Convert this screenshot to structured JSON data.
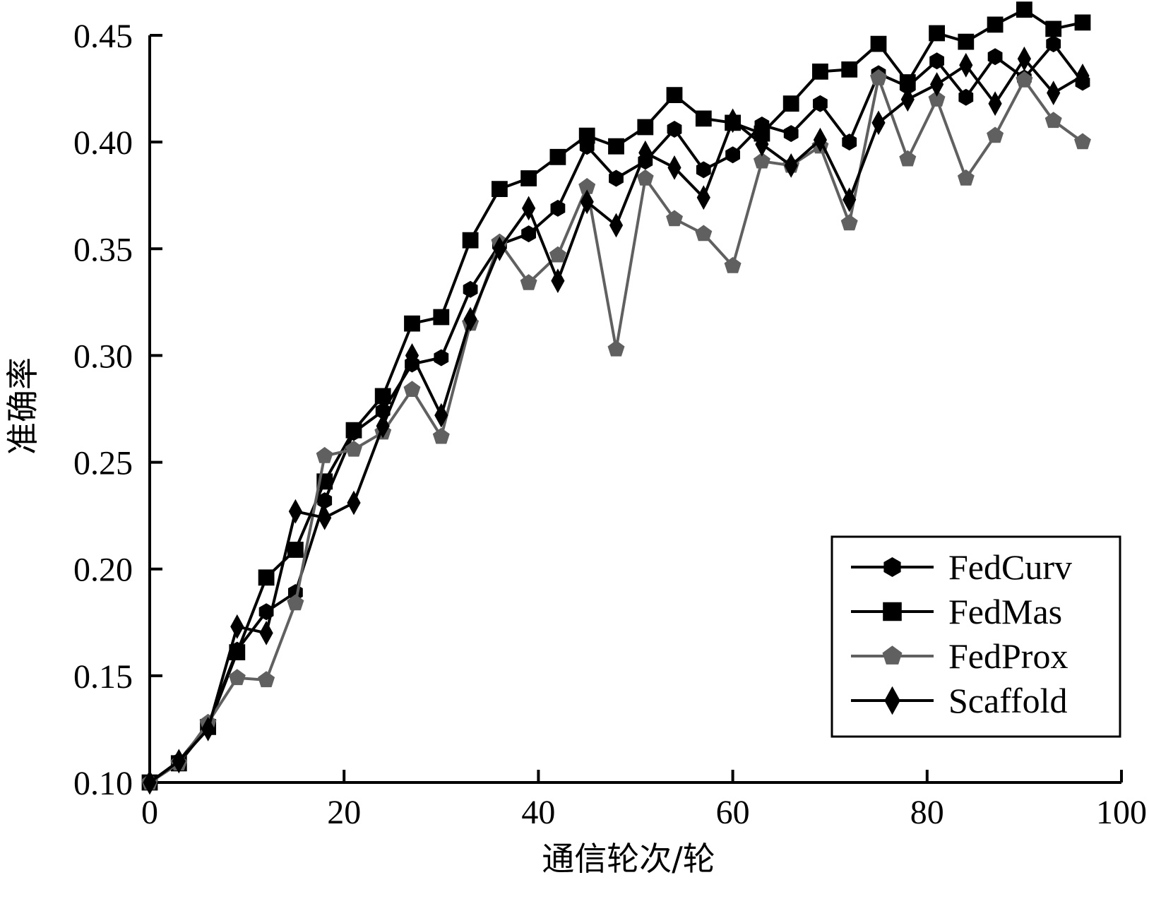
{
  "chart_data": {
    "type": "line",
    "title": "",
    "xlabel": "通信轮次/轮",
    "ylabel": "准确率",
    "xlim": [
      0,
      100
    ],
    "ylim": [
      0.1,
      0.45
    ],
    "xticks": [
      0,
      20,
      40,
      60,
      80,
      100
    ],
    "xtick_labels": [
      "0",
      "20",
      "40",
      "60",
      "80",
      "100"
    ],
    "yticks": [
      0.1,
      0.15,
      0.2,
      0.25,
      0.3,
      0.35,
      0.4,
      0.45
    ],
    "ytick_labels": [
      "0.10",
      "0.15",
      "0.20",
      "0.25",
      "0.30",
      "0.35",
      "0.40",
      "0.45"
    ],
    "grid": false,
    "legend_position": "bottom-right",
    "x": [
      0,
      3,
      6,
      9,
      12,
      15,
      18,
      21,
      24,
      27,
      30,
      33,
      36,
      39,
      42,
      45,
      48,
      51,
      54,
      57,
      60,
      63,
      66,
      69,
      72,
      75,
      78,
      81,
      84,
      87,
      90,
      93,
      96
    ],
    "series": [
      {
        "name": "FedCurv",
        "color": "#000000",
        "marker": "hexagon",
        "values": [
          0.1,
          0.11,
          0.127,
          0.162,
          0.18,
          0.189,
          0.232,
          0.264,
          0.274,
          0.296,
          0.299,
          0.331,
          0.352,
          0.357,
          0.369,
          0.398,
          0.383,
          0.391,
          0.406,
          0.387,
          0.394,
          0.408,
          0.404,
          0.418,
          0.4,
          0.432,
          0.426,
          0.438,
          0.421,
          0.44,
          0.43,
          0.446,
          0.428
        ]
      },
      {
        "name": "FedMas",
        "color": "#000000",
        "marker": "square",
        "values": [
          0.1,
          0.109,
          0.126,
          0.161,
          0.196,
          0.209,
          0.241,
          0.265,
          0.281,
          0.315,
          0.318,
          0.354,
          0.378,
          0.383,
          0.393,
          0.403,
          0.398,
          0.407,
          0.422,
          0.411,
          0.409,
          0.404,
          0.418,
          0.433,
          0.434,
          0.446,
          0.428,
          0.451,
          0.447,
          0.455,
          0.462,
          0.453,
          0.456
        ]
      },
      {
        "name": "FedProx",
        "color": "#606060",
        "marker": "pentagon",
        "values": [
          0.1,
          0.109,
          0.128,
          0.149,
          0.148,
          0.184,
          0.253,
          0.256,
          0.264,
          0.284,
          0.262,
          0.315,
          0.353,
          0.334,
          0.347,
          0.379,
          0.303,
          0.383,
          0.364,
          0.357,
          0.342,
          0.391,
          0.389,
          0.398,
          0.362,
          0.43,
          0.392,
          0.42,
          0.383,
          0.403,
          0.429,
          0.41,
          0.4
        ]
      },
      {
        "name": "Scaffold",
        "color": "#000000",
        "marker": "diamond",
        "values": [
          0.1,
          0.11,
          0.125,
          0.173,
          0.17,
          0.227,
          0.224,
          0.231,
          0.267,
          0.3,
          0.272,
          0.317,
          0.35,
          0.369,
          0.335,
          0.372,
          0.361,
          0.395,
          0.388,
          0.374,
          0.41,
          0.399,
          0.389,
          0.401,
          0.373,
          0.409,
          0.42,
          0.427,
          0.436,
          0.418,
          0.439,
          0.423,
          0.431
        ]
      }
    ]
  }
}
